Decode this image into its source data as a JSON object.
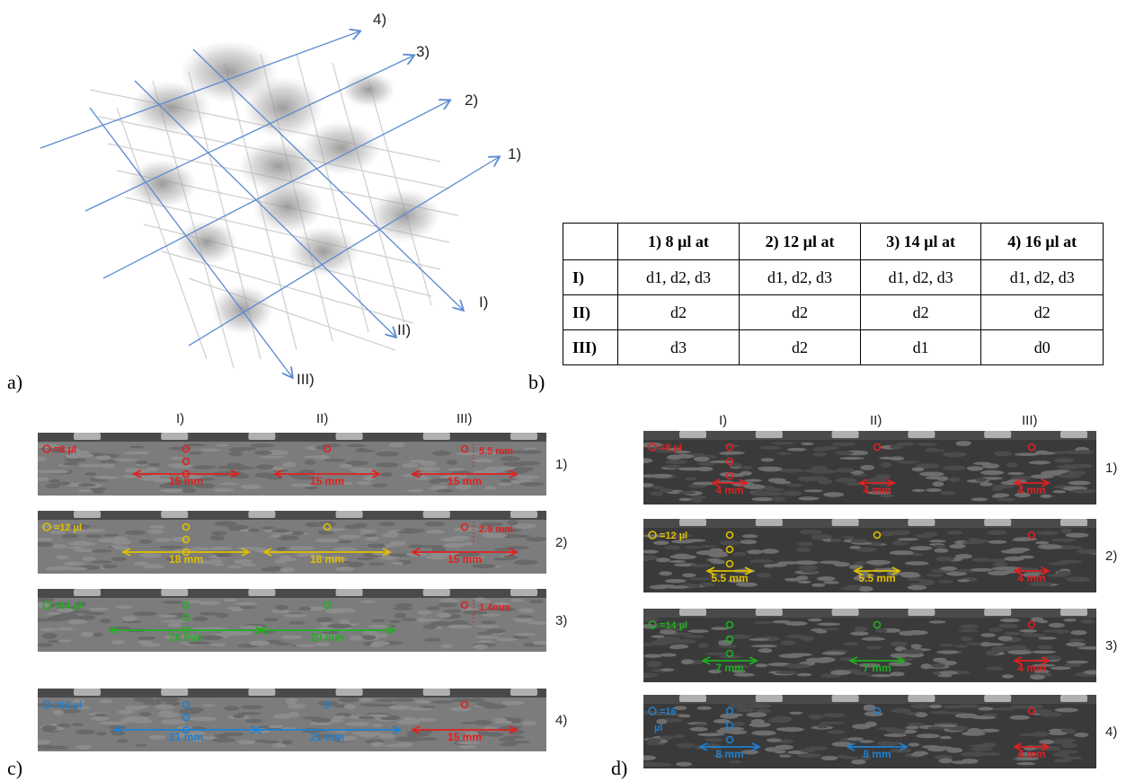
{
  "panels": {
    "a": {
      "letter": "a)",
      "row_labels": [
        "1)",
        "2)",
        "3)",
        "4)"
      ],
      "col_labels": [
        "I)",
        "II)",
        "III)"
      ]
    },
    "b": {
      "letter": "b)",
      "header": [
        "",
        "1) 8 µl at",
        "2) 12 µl at",
        "3) 14 µl at",
        "4) 16 µl at"
      ],
      "rows": [
        {
          "label": "I)",
          "cells": [
            "d1, d2, d3",
            "d1, d2, d3",
            "d1, d2, d3",
            "d1, d2, d3"
          ]
        },
        {
          "label": "II)",
          "cells": [
            "d2",
            "d2",
            "d2",
            "d2"
          ]
        },
        {
          "label": "III)",
          "cells": [
            "d3",
            "d2",
            "d1",
            "d0"
          ]
        }
      ]
    },
    "c": {
      "letter": "c)",
      "col_labels": [
        "I)",
        "II)",
        "III)"
      ],
      "scans": [
        {
          "row": "1)",
          "legend": "=8 µl",
          "color": "#e02020",
          "meas": [
            "15 mm",
            "15 mm",
            "15 mm"
          ],
          "depth": "5.5 mm"
        },
        {
          "row": "2)",
          "legend": "=12 µl",
          "color": "#e0c000",
          "meas": [
            "18 mm",
            "18 mm",
            "15 mm"
          ],
          "depth": "2.9 mm"
        },
        {
          "row": "3)",
          "legend": "=14 µl",
          "color": "#20b020",
          "meas": [
            "20 mm",
            "20 mm"
          ],
          "depth": "1.4mm"
        },
        {
          "row": "4)",
          "legend": "=16 µl",
          "color": "#2080d0",
          "meas": [
            "21 mm",
            "21 mm",
            "15 mm"
          ],
          "depth": ""
        }
      ]
    },
    "d": {
      "letter": "d)",
      "col_labels": [
        "I)",
        "II)",
        "III)"
      ],
      "scans": [
        {
          "row": "1)",
          "legend": "=8 µl",
          "color": "#e02020",
          "meas": [
            "4 mm",
            "4 mm",
            "4 mm"
          ]
        },
        {
          "row": "2)",
          "legend": "=12 µl",
          "color": "#e0c000",
          "meas": [
            "5.5 mm",
            "5.5 mm",
            "4 mm"
          ]
        },
        {
          "row": "3)",
          "legend": "=14 µl",
          "color": "#20b020",
          "meas": [
            "7 mm",
            "7 mm",
            "4 mm"
          ]
        },
        {
          "row": "4)",
          "legend": "=16",
          "legend2": "µl",
          "color": "#2080d0",
          "meas": [
            "8 mm",
            "8 mm",
            "4 mm"
          ]
        }
      ]
    }
  }
}
